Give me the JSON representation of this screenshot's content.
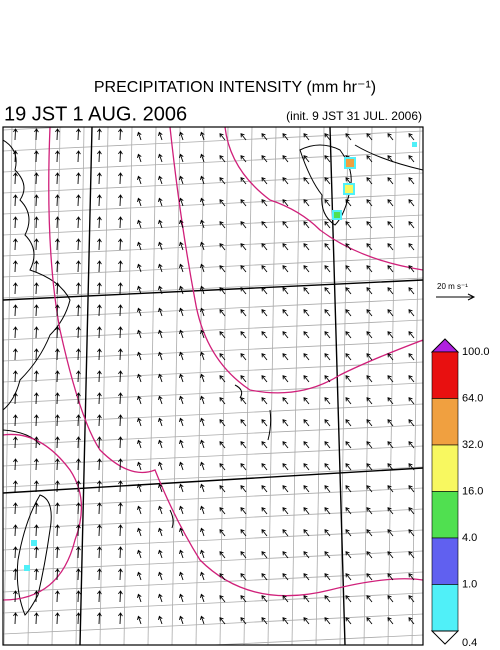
{
  "header": {
    "title": "PRECIPITATION INTENSITY (mm hr⁻¹)",
    "valid_time": "19 JST 1 AUG. 2006",
    "init_time": "(init. 9 JST 31 JUL. 2006)"
  },
  "legend": {
    "wind_scale_label": "20 m s⁻¹",
    "levels": [
      {
        "value": 100,
        "label": "100.0"
      },
      {
        "value": 64,
        "label": "64.0"
      },
      {
        "value": 32,
        "label": "32.0"
      },
      {
        "value": 16,
        "label": "16.0"
      },
      {
        "value": 4,
        "label": "4.0"
      },
      {
        "value": 1,
        "label": "1.0"
      },
      {
        "value": 0.4,
        "label": "0.4"
      }
    ],
    "over_color": "#b020e0",
    "colors": [
      "#e81010",
      "#f0a040",
      "#f8f860",
      "#50e050",
      "#6060f0",
      "#50f0f8"
    ],
    "under_color": "#ffffff"
  }
}
